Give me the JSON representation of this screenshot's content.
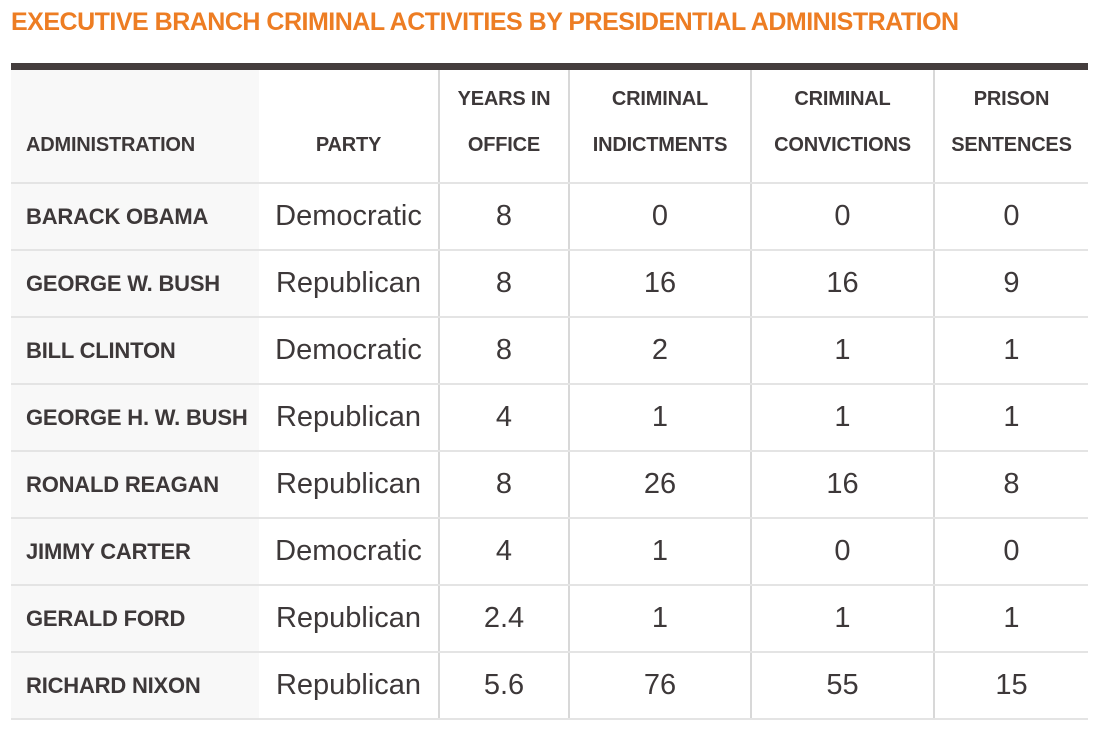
{
  "title": "EXECUTIVE BRANCH CRIMINAL ACTIVITIES BY PRESIDENTIAL ADMINISTRATION",
  "colors": {
    "title_orange": "#ed7d23",
    "top_bar_dark": "#443d3d",
    "text_dark": "#3d3839",
    "first_col_bg": "#f8f8f8",
    "row_border": "#e4e4e4",
    "col_border": "#d8d8d8"
  },
  "chart_data": {
    "type": "table",
    "title": "EXECUTIVE BRANCH CRIMINAL ACTIVITIES BY PRESIDENTIAL ADMINISTRATION",
    "columns": [
      "ADMINISTRATION",
      "PARTY",
      "YEARS IN OFFICE",
      "CRIMINAL INDICTMENTS",
      "CRIMINAL CONVICTIONS",
      "PRISON SENTENCES"
    ],
    "rows": [
      {
        "administration": "BARACK OBAMA",
        "party": "Democratic",
        "years_in_office": "8",
        "criminal_indictments": "0",
        "criminal_convictions": "0",
        "prison_sentences": "0"
      },
      {
        "administration": "GEORGE W. BUSH",
        "party": "Republican",
        "years_in_office": "8",
        "criminal_indictments": "16",
        "criminal_convictions": "16",
        "prison_sentences": "9"
      },
      {
        "administration": "BILL CLINTON",
        "party": "Democratic",
        "years_in_office": "8",
        "criminal_indictments": "2",
        "criminal_convictions": "1",
        "prison_sentences": "1"
      },
      {
        "administration": "GEORGE H. W. BUSH",
        "party": "Republican",
        "years_in_office": "4",
        "criminal_indictments": "1",
        "criminal_convictions": "1",
        "prison_sentences": "1"
      },
      {
        "administration": "RONALD REAGAN",
        "party": "Republican",
        "years_in_office": "8",
        "criminal_indictments": "26",
        "criminal_convictions": "16",
        "prison_sentences": "8"
      },
      {
        "administration": "JIMMY CARTER",
        "party": "Democratic",
        "years_in_office": "4",
        "criminal_indictments": "1",
        "criminal_convictions": "0",
        "prison_sentences": "0"
      },
      {
        "administration": "GERALD FORD",
        "party": "Republican",
        "years_in_office": "2.4",
        "criminal_indictments": "1",
        "criminal_convictions": "1",
        "prison_sentences": "1"
      },
      {
        "administration": "RICHARD NIXON",
        "party": "Republican",
        "years_in_office": "5.6",
        "criminal_indictments": "76",
        "criminal_convictions": "55",
        "prison_sentences": "15"
      }
    ]
  }
}
